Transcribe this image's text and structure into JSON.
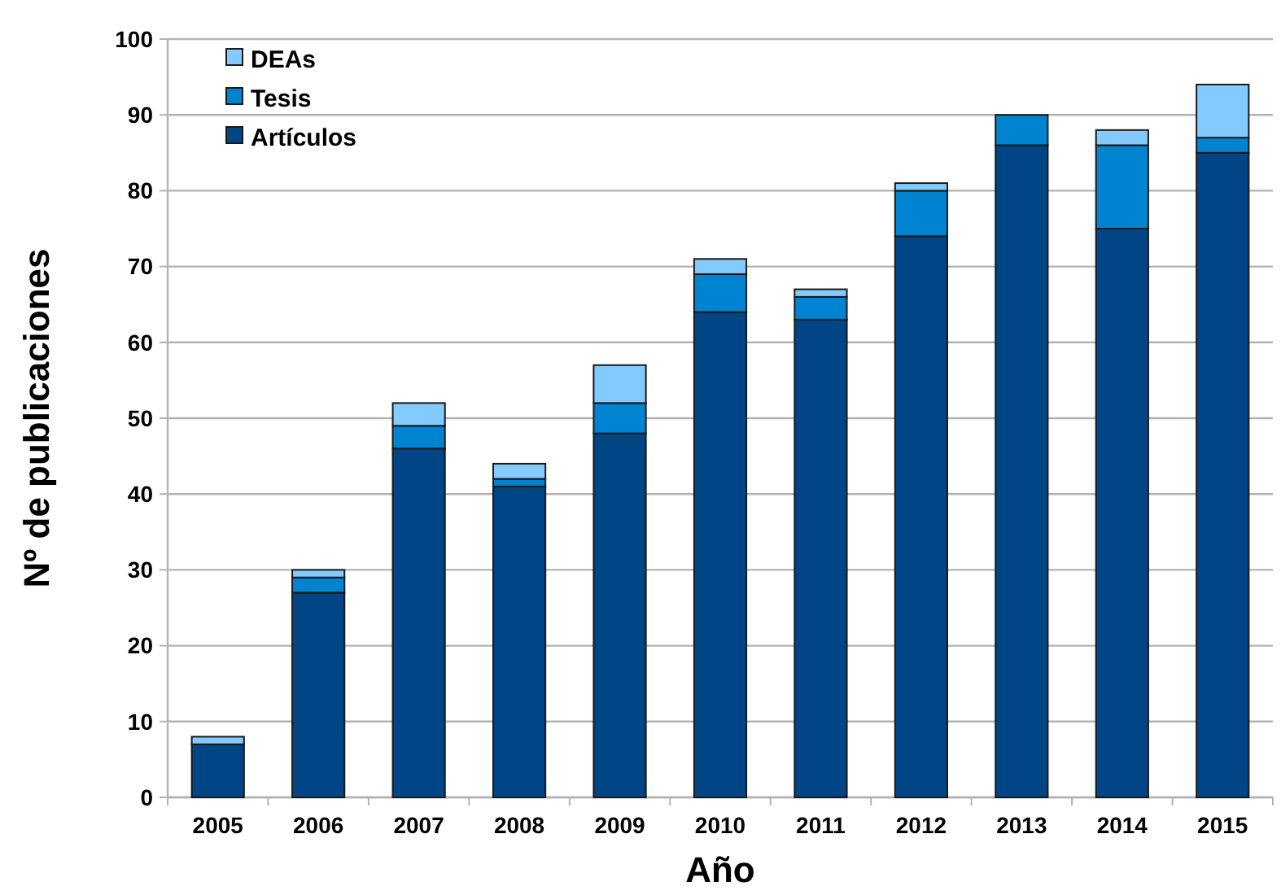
{
  "chart_data": {
    "type": "bar",
    "stacked": true,
    "xlabel": "Año",
    "ylabel": "Nº de publicaciones",
    "categories": [
      "2005",
      "2006",
      "2007",
      "2008",
      "2009",
      "2010",
      "2011",
      "2012",
      "2013",
      "2014",
      "2015"
    ],
    "series": [
      {
        "name": "Artículos",
        "color": "#004586",
        "values": [
          7,
          27,
          46,
          41,
          48,
          64,
          63,
          74,
          86,
          75,
          85
        ]
      },
      {
        "name": "Tesis",
        "color": "#0084d1",
        "values": [
          0,
          2,
          3,
          1,
          4,
          5,
          3,
          6,
          4,
          11,
          2
        ]
      },
      {
        "name": "DEAs",
        "color": "#83caff",
        "values": [
          1,
          1,
          3,
          2,
          5,
          2,
          1,
          1,
          0,
          2,
          7
        ]
      }
    ],
    "ylim": [
      0,
      100
    ],
    "yticks": [
      0,
      10,
      20,
      30,
      40,
      50,
      60,
      70,
      80,
      90,
      100
    ],
    "grid": "y",
    "legend": "top left"
  }
}
